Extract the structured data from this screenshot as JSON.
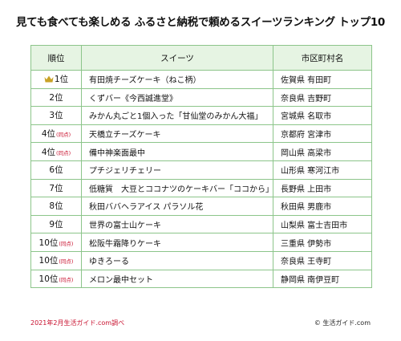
{
  "title": "見ても食べても楽しめる ふるさと納税で頼めるスイーツランキング トップ10",
  "columns": {
    "rank": "順位",
    "sweets": "スイーツ",
    "city": "市区町村名"
  },
  "tie_label": "(同点)",
  "rows": [
    {
      "rank": "1位",
      "sweets": "有田焼チーズケーキ（ねこ柄）",
      "city": "佐賀県 有田町"
    },
    {
      "rank": "2位",
      "sweets": "くずバー《今西誠進堂》",
      "city": "奈良県 吉野町"
    },
    {
      "rank": "3位",
      "sweets": "みかん丸ごと1個入った「甘仙堂のみかん大福」",
      "city": "宮城県 名取市"
    },
    {
      "rank": "4位",
      "sweets": "天橋立チーズケーキ",
      "city": "京都府 宮津市"
    },
    {
      "rank": "4位",
      "sweets": "備中神楽面最中",
      "city": "岡山県 高梁市"
    },
    {
      "rank": "6位",
      "sweets": "プチジェリチェリー",
      "city": "山形県 寒河江市"
    },
    {
      "rank": "7位",
      "sweets": "低糖質　大豆とココナツのケーキバー「ココから」",
      "city": "長野県 上田市"
    },
    {
      "rank": "8位",
      "sweets": "秋田ババヘラアイス パラソル花",
      "city": "秋田県 男鹿市"
    },
    {
      "rank": "9位",
      "sweets": "世界の富士山ケーキ",
      "city": "山梨県 富士吉田市"
    },
    {
      "rank": "10位",
      "sweets": "松阪牛霜降りケーキ",
      "city": "三重県 伊勢市"
    },
    {
      "rank": "10位",
      "sweets": "ゆきろーる",
      "city": "奈良県 王寺町"
    },
    {
      "rank": "10位",
      "sweets": "メロン最中セット",
      "city": "静岡県 南伊豆町"
    }
  ],
  "footer": {
    "survey_note": "2021年2月生活ガイド.com調べ",
    "copyright": "© 生活ガイド.com"
  },
  "colors": {
    "border": "#8cc58a",
    "header_bg": "#e6f4e3",
    "note_red": "#c8102e",
    "crown": "#c9a227"
  }
}
